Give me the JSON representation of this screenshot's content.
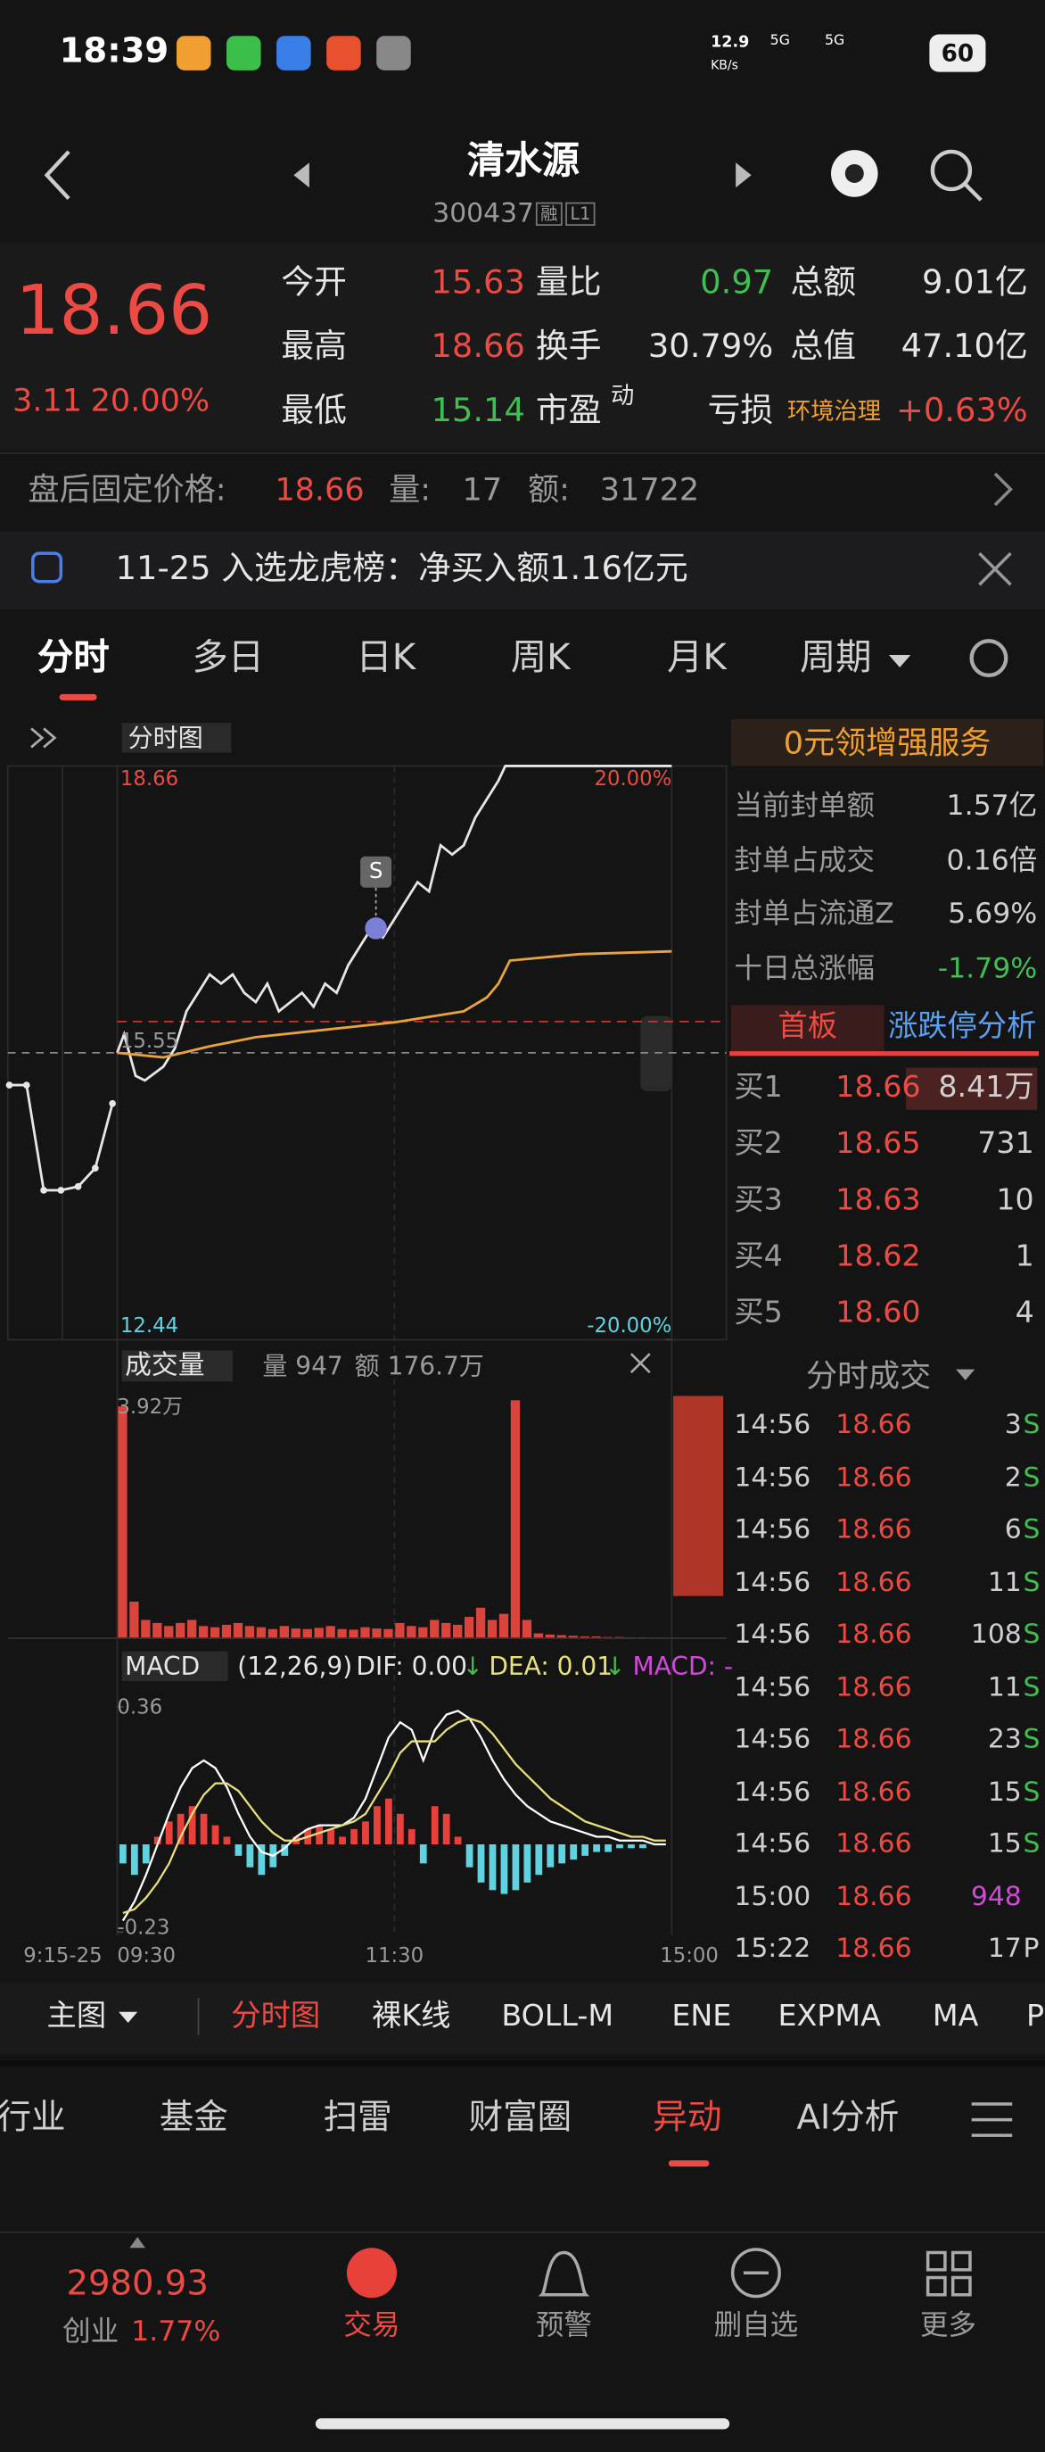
{
  "status_bar": {
    "time": "18:39",
    "net_speed": "12.9",
    "net_unit": "KB/s",
    "signal_1": "5G",
    "signal_2": "5G",
    "battery": "60"
  },
  "header": {
    "title": "清水源",
    "code": "300437",
    "badges": [
      "融",
      "L1"
    ]
  },
  "quote": {
    "price": "18.66",
    "change": "3.11",
    "change_pct": "20.00%",
    "fields": [
      {
        "label": "今开",
        "value": "15.63",
        "tone": "up"
      },
      {
        "label": "量比",
        "value": "0.97",
        "tone": "down"
      },
      {
        "label": "总额",
        "value": "9.01亿",
        "tone": "flat"
      },
      {
        "label": "最高",
        "value": "18.66",
        "tone": "up"
      },
      {
        "label": "换手",
        "value": "30.79%",
        "tone": "flat"
      },
      {
        "label": "总值",
        "value": "47.10亿",
        "tone": "flat"
      },
      {
        "label": "最低",
        "value": "15.14",
        "tone": "down"
      },
      {
        "label": "市盈",
        "label_sup": "动",
        "value": "亏损",
        "tone": "flat"
      }
    ],
    "sector": "环境治理",
    "sector_change": "+0.63%"
  },
  "after_hours": {
    "label": "盘后固定价格:",
    "price": "18.66",
    "volume_label": "量:",
    "volume": "17",
    "amount_label": "额:",
    "amount": "31722"
  },
  "notice": {
    "text": "11-25 入选龙虎榜：净买入额1.16亿元"
  },
  "tabs": {
    "items": [
      "分时",
      "多日",
      "日K",
      "周K",
      "月K",
      "周期"
    ],
    "active": 0
  },
  "chart": {
    "type": "line",
    "dropdown": "分时图",
    "auction_label": "9:15-25",
    "xlim": [
      0,
      240
    ],
    "xticks": [
      {
        "value": 0,
        "label": "09:30"
      },
      {
        "value": 120,
        "label": "11:30"
      },
      {
        "value": 240,
        "label": "15:00"
      }
    ],
    "ylim": [
      12.44,
      18.66
    ],
    "yticks": [
      18.66,
      15.55,
      12.44
    ],
    "y2lim": [
      -20,
      20
    ],
    "y2ticks": [
      {
        "value": 20,
        "label": "20.00%"
      },
      {
        "value": -20,
        "label": "-20.00%"
      }
    ],
    "series": [
      {
        "color": "#e6e6e6",
        "x": [
          0,
          3,
          8,
          12,
          20,
          25,
          30,
          35,
          40,
          45,
          50,
          55,
          60,
          65,
          70,
          75,
          80,
          85,
          90,
          95,
          100,
          105,
          110,
          115,
          120,
          125,
          130,
          135,
          140,
          145,
          150,
          155,
          160,
          165,
          168,
          200,
          240
        ],
        "values": [
          15.55,
          15.75,
          15.3,
          15.25,
          15.4,
          15.6,
          16.0,
          16.2,
          16.4,
          16.3,
          16.4,
          16.2,
          16.1,
          16.3,
          16.0,
          16.1,
          16.2,
          16.05,
          16.3,
          16.2,
          16.5,
          16.7,
          16.9,
          16.8,
          17.0,
          17.2,
          17.4,
          17.3,
          17.8,
          17.7,
          17.8,
          18.1,
          18.3,
          18.5,
          18.66,
          18.66,
          18.66
        ]
      },
      {
        "color": "#e8a33c",
        "x": [
          0,
          20,
          40,
          60,
          90,
          120,
          150,
          160,
          165,
          170,
          200,
          240
        ],
        "values": [
          15.55,
          15.5,
          15.62,
          15.72,
          15.8,
          15.88,
          16.0,
          16.15,
          16.3,
          16.55,
          16.62,
          16.65
        ]
      }
    ],
    "auction": {
      "color": "#e6e6e6",
      "values": [
        15.2,
        15.2,
        14.06,
        14.06,
        14.1,
        14.3,
        15.0
      ]
    },
    "signal": {
      "label": "S",
      "x": 112,
      "value": 16.9
    }
  },
  "volume": {
    "type": "bar",
    "dropdown": "成交量",
    "volume_label": "量 947",
    "amount_label": "额 176.7万",
    "color": "#d9453d",
    "ylim": [
      0,
      39200
    ],
    "yticks": [
      {
        "value": 39200,
        "label": "3.92万"
      }
    ],
    "x": [
      0,
      5,
      10,
      15,
      20,
      25,
      30,
      35,
      40,
      45,
      50,
      55,
      60,
      65,
      70,
      75,
      80,
      85,
      90,
      95,
      100,
      105,
      110,
      115,
      120,
      125,
      130,
      135,
      140,
      145,
      150,
      155,
      160,
      165,
      170,
      175,
      180,
      185,
      190,
      195,
      200,
      205,
      210,
      215,
      220,
      225,
      230,
      235
    ],
    "values": [
      38000,
      6000,
      3000,
      2500,
      2000,
      2500,
      3000,
      2000,
      1800,
      2200,
      2500,
      2000,
      1800,
      1500,
      2000,
      1600,
      1500,
      1700,
      2000,
      1500,
      1400,
      1800,
      1600,
      1500,
      2500,
      2000,
      1800,
      3000,
      2500,
      2200,
      3500,
      5000,
      3000,
      4000,
      39000,
      3000,
      800,
      600,
      500,
      400,
      300,
      300,
      200,
      200,
      150,
      150,
      100,
      100
    ]
  },
  "macd": {
    "type": "bar",
    "dropdown": "MACD",
    "params": "(12,26,9)",
    "dif_label": "DIF: 0.00",
    "dif_arrow": "↓",
    "dea_label": "DEA: 0.01",
    "dea_arrow": "↓",
    "macd_label": "MACD: -",
    "ylim": [
      -0.23,
      0.36
    ],
    "yticks": [
      0.36,
      -0.23
    ],
    "up_color": "#e8413c",
    "down_color": "#5fd3e0",
    "x": [
      0,
      5,
      10,
      15,
      20,
      25,
      30,
      35,
      40,
      45,
      50,
      55,
      60,
      65,
      70,
      75,
      80,
      85,
      90,
      95,
      100,
      105,
      110,
      115,
      120,
      125,
      130,
      135,
      140,
      145,
      150,
      155,
      160,
      165,
      170,
      175,
      180,
      185,
      190,
      195,
      200,
      205,
      210,
      215,
      220,
      225,
      230,
      235
    ],
    "values": [
      -0.05,
      -0.08,
      -0.05,
      0.02,
      0.06,
      0.08,
      0.1,
      0.08,
      0.05,
      0.02,
      -0.03,
      -0.06,
      -0.08,
      -0.06,
      -0.03,
      0.02,
      0.04,
      0.05,
      0.04,
      0.02,
      0.04,
      0.06,
      0.1,
      0.12,
      0.08,
      0.04,
      -0.05,
      0.1,
      0.08,
      0.02,
      -0.06,
      -0.1,
      -0.12,
      -0.13,
      -0.12,
      -0.1,
      -0.08,
      -0.06,
      -0.05,
      -0.04,
      -0.03,
      -0.02,
      -0.02,
      -0.01,
      -0.01,
      -0.01,
      0,
      0
    ],
    "lines": [
      {
        "color": "#ffffff",
        "values": [
          -0.2,
          -0.15,
          -0.08,
          0,
          0.08,
          0.15,
          0.2,
          0.22,
          0.2,
          0.15,
          0.08,
          0.02,
          -0.02,
          -0.03,
          -0.01,
          0.02,
          0.04,
          0.05,
          0.05,
          0.05,
          0.07,
          0.12,
          0.2,
          0.28,
          0.32,
          0.3,
          0.22,
          0.3,
          0.34,
          0.35,
          0.33,
          0.28,
          0.22,
          0.17,
          0.13,
          0.1,
          0.08,
          0.06,
          0.05,
          0.04,
          0.03,
          0.02,
          0.02,
          0.01,
          0.01,
          0.01,
          0,
          0
        ]
      },
      {
        "color": "#e8e07a",
        "values": [
          -0.18,
          -0.17,
          -0.14,
          -0.1,
          -0.05,
          0.02,
          0.08,
          0.13,
          0.16,
          0.16,
          0.14,
          0.1,
          0.06,
          0.03,
          0.01,
          0.01,
          0.02,
          0.03,
          0.04,
          0.05,
          0.06,
          0.08,
          0.13,
          0.18,
          0.24,
          0.27,
          0.27,
          0.27,
          0.3,
          0.32,
          0.33,
          0.32,
          0.29,
          0.25,
          0.21,
          0.18,
          0.15,
          0.12,
          0.1,
          0.08,
          0.06,
          0.05,
          0.04,
          0.03,
          0.02,
          0.02,
          0.01,
          0.01
        ]
      }
    ]
  },
  "panel": {
    "promo": "0元领增强服务",
    "stats": [
      {
        "label": "当前封单额",
        "value": "1.57亿",
        "tone": "flat"
      },
      {
        "label": "封单占成交",
        "value": "0.16倍",
        "tone": "flat"
      },
      {
        "label": "封单占流通Z",
        "value": "5.69%",
        "tone": "flat"
      },
      {
        "label": "十日总涨幅",
        "value": "-1.79%",
        "tone": "down"
      }
    ],
    "tabs": [
      "首板",
      "涨跌停分析"
    ],
    "bids": [
      {
        "label": "买1",
        "price": "18.66",
        "volume": "8.41万"
      },
      {
        "label": "买2",
        "price": "18.65",
        "volume": "731"
      },
      {
        "label": "买3",
        "price": "18.63",
        "volume": "10"
      },
      {
        "label": "买4",
        "price": "18.62",
        "volume": "1"
      },
      {
        "label": "买5",
        "price": "18.60",
        "volume": "4"
      }
    ],
    "trades_title": "分时成交",
    "trades": [
      {
        "time": "14:56",
        "price": "18.66",
        "volume": "3",
        "side": "S"
      },
      {
        "time": "14:56",
        "price": "18.66",
        "volume": "2",
        "side": "S"
      },
      {
        "time": "14:56",
        "price": "18.66",
        "volume": "6",
        "side": "S"
      },
      {
        "time": "14:56",
        "price": "18.66",
        "volume": "11",
        "side": "S"
      },
      {
        "time": "14:56",
        "price": "18.66",
        "volume": "108",
        "side": "S"
      },
      {
        "time": "14:56",
        "price": "18.66",
        "volume": "11",
        "side": "S"
      },
      {
        "time": "14:56",
        "price": "18.66",
        "volume": "23",
        "side": "S"
      },
      {
        "time": "14:56",
        "price": "18.66",
        "volume": "15",
        "side": "S"
      },
      {
        "time": "14:56",
        "price": "18.66",
        "volume": "15",
        "side": "S"
      },
      {
        "time": "15:00",
        "price": "18.66",
        "volume": "948",
        "highlight": true
      },
      {
        "time": "15:22",
        "price": "18.66",
        "volume": "17",
        "side": "P"
      }
    ]
  },
  "indicator_bar": {
    "main": "主图",
    "items": [
      "分时图",
      "裸K线",
      "BOLL-M",
      "ENE",
      "EXPMA",
      "MA",
      "P"
    ],
    "active": 0
  },
  "bottom_tabs": {
    "items": [
      "行业",
      "基金",
      "扫雷",
      "财富圈",
      "异动",
      "AI分析"
    ],
    "active": 4
  },
  "nav": {
    "index_value": "2980.93",
    "index_name": "创业",
    "index_change": "1.77%",
    "items": [
      "交易",
      "预警",
      "删自选",
      "更多"
    ],
    "active": 0
  }
}
